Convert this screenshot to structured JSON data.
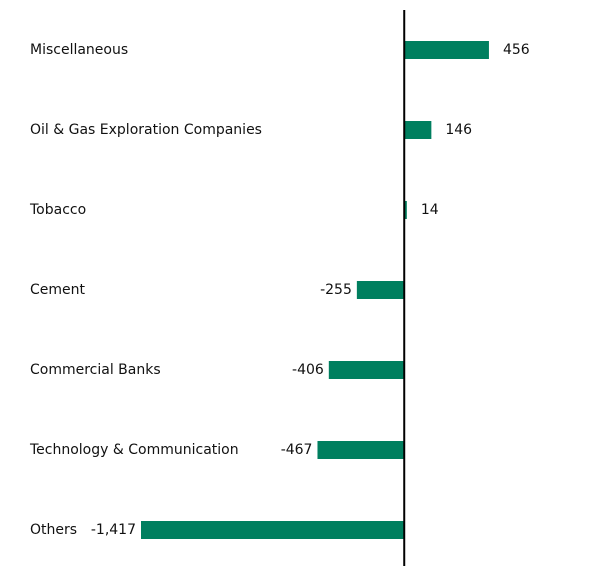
{
  "chart_data": {
    "type": "barh",
    "categories": [
      "Miscellaneous",
      "Oil & Gas Exploration Companies",
      "Tobacco",
      "Cement",
      "Commercial Banks",
      "Technology & Communication",
      "Others"
    ],
    "values": [
      456,
      146,
      14,
      -255,
      -406,
      -467,
      -1417
    ],
    "value_labels": [
      "456",
      "146",
      "14",
      "-255",
      "-406",
      "-467",
      "-1,417"
    ],
    "color": "#007f5f",
    "xlim": [
      -1417,
      1000
    ]
  }
}
